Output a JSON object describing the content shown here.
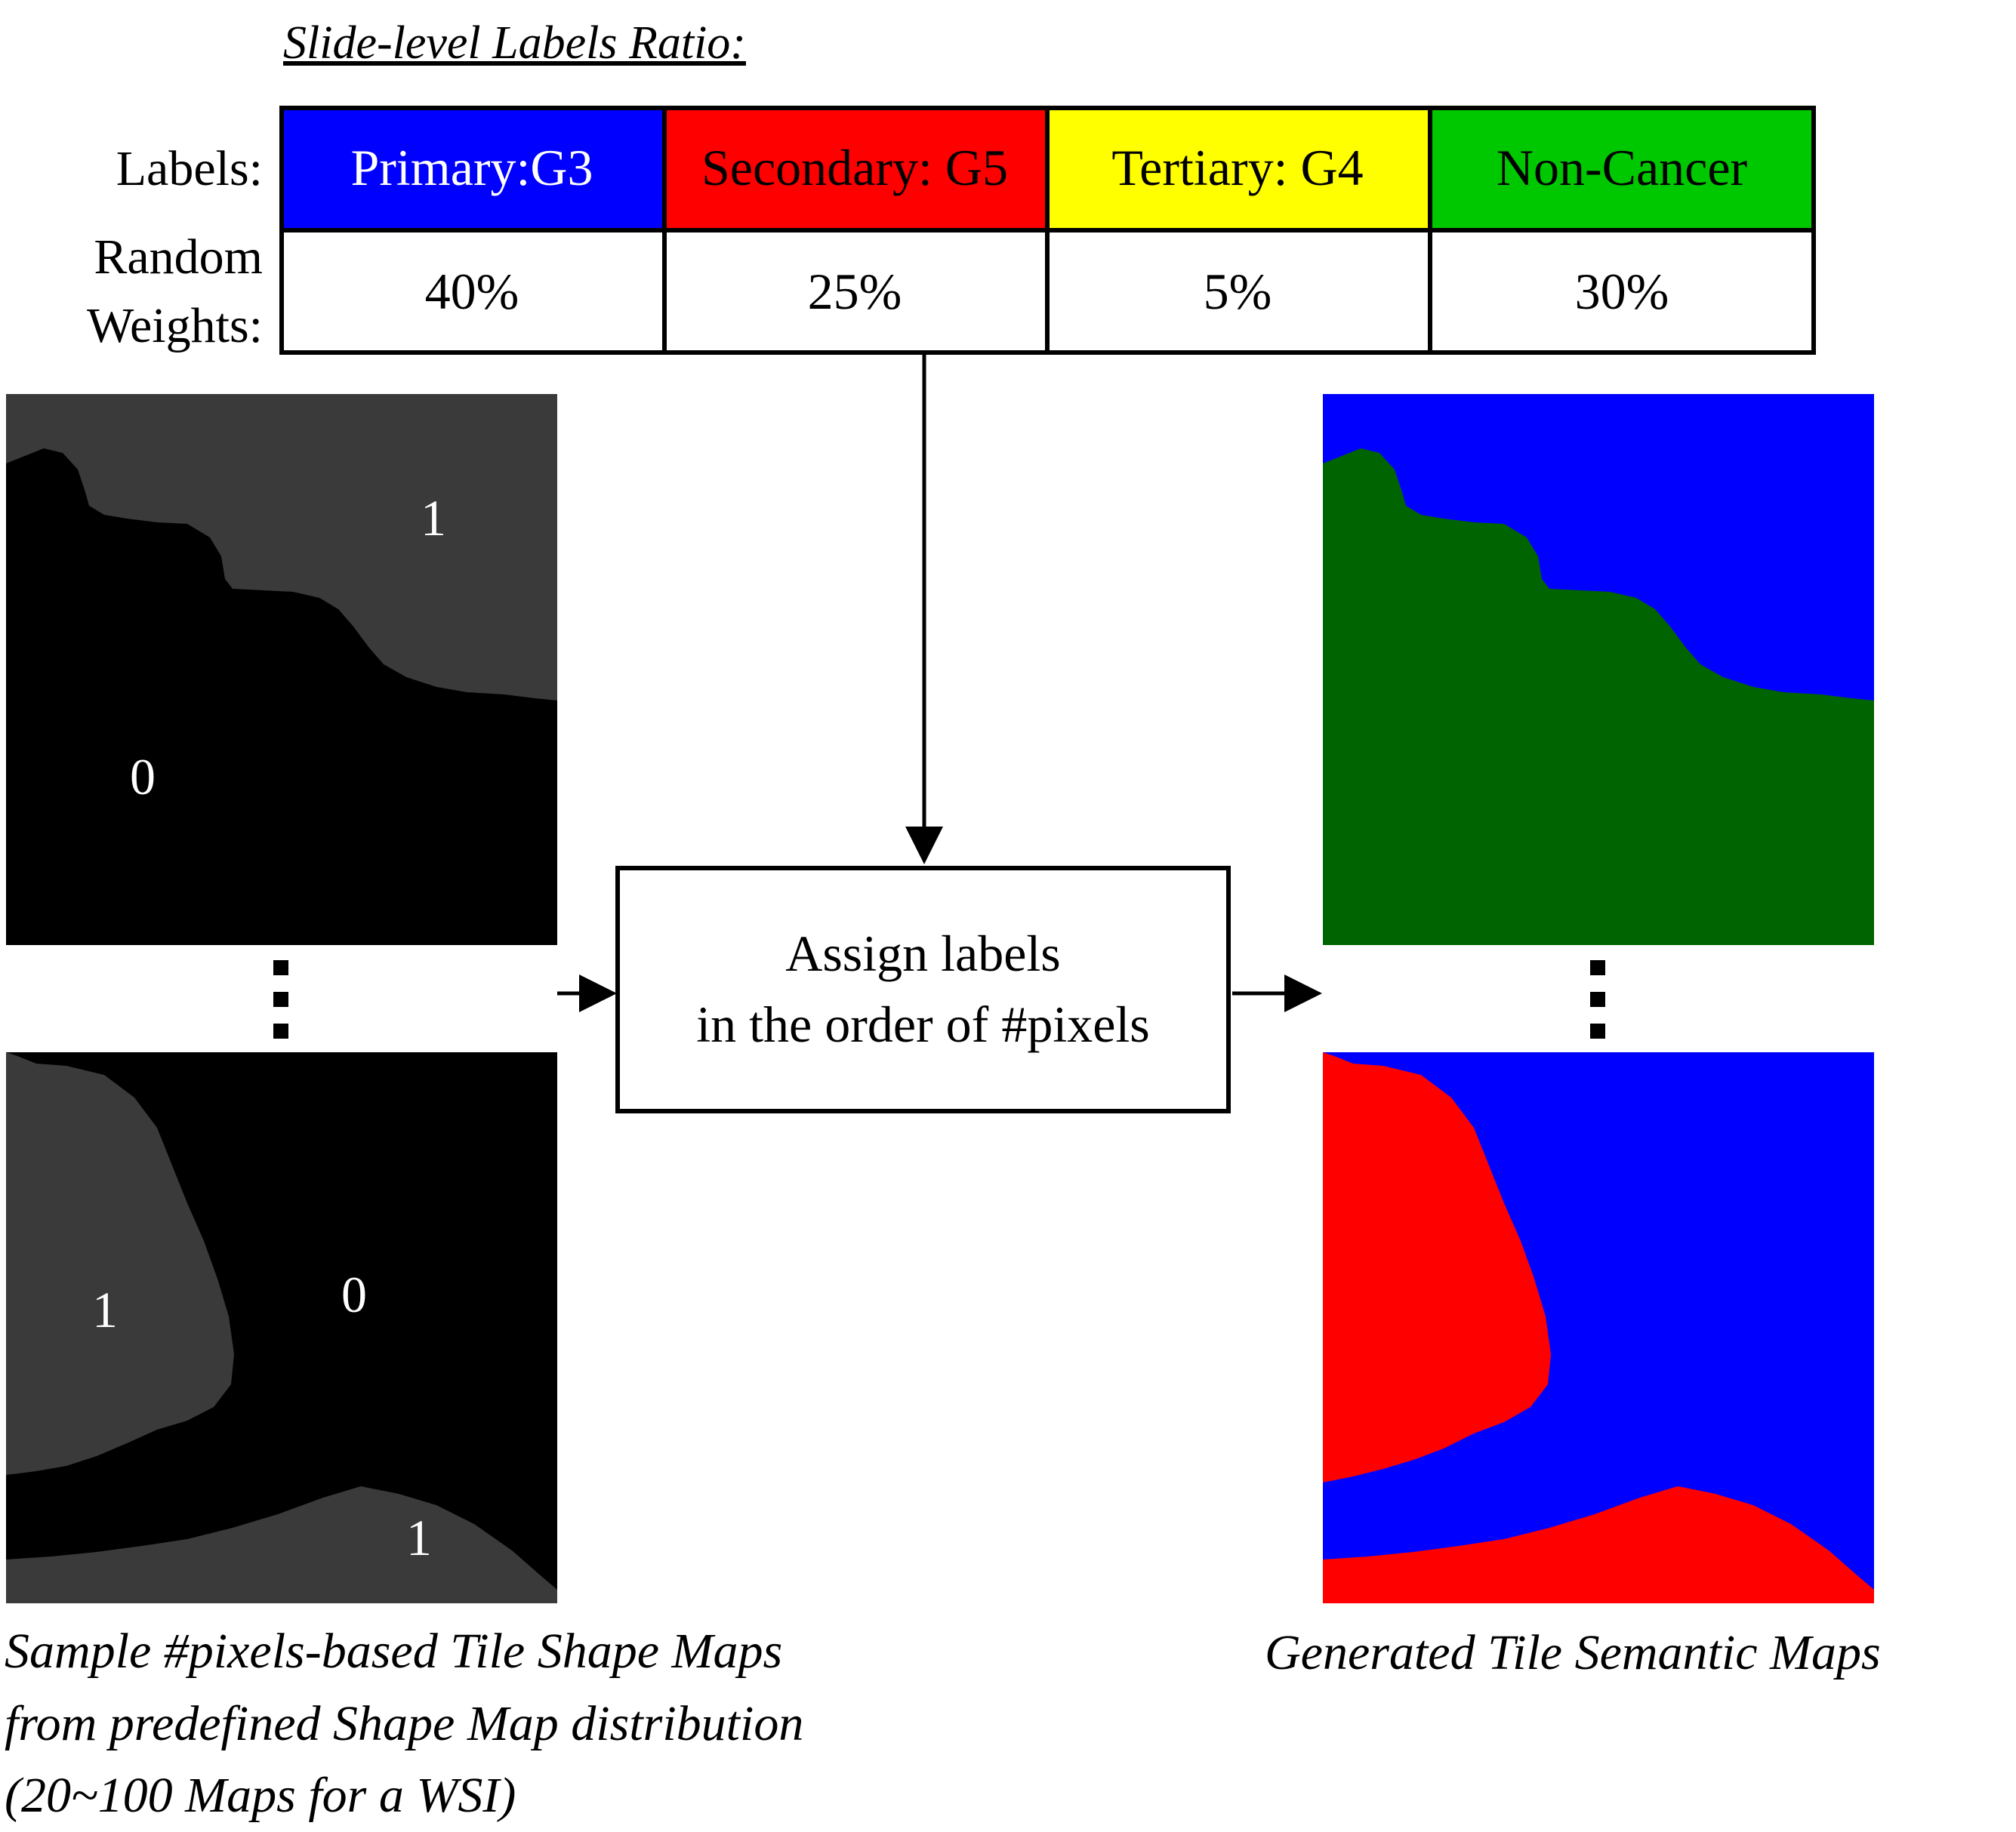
{
  "title": "Slide-level Labels Ratio:",
  "row_labels": {
    "labels": "Labels:",
    "weights_line1": "Random",
    "weights_line2": "Weights:"
  },
  "labels": [
    {
      "text": "Primary:G3",
      "color": "#0000ff",
      "text_color": "#ffffff",
      "weight": "40%"
    },
    {
      "text": "Secondary: G5",
      "color": "#ff0000",
      "text_color": "#000000",
      "weight": "25%"
    },
    {
      "text": "Tertiary: G4",
      "color": "#ffff00",
      "text_color": "#000000",
      "weight": "5%"
    },
    {
      "text": "Non-Cancer",
      "color": "#00c800",
      "text_color": "#000000",
      "weight": "30%"
    }
  ],
  "process_box": {
    "line1": "Assign labels",
    "line2": "in the order of #pixels"
  },
  "shape_maps": {
    "top": {
      "region_a": "1",
      "region_b": "0"
    },
    "bottom": {
      "region_a": "1",
      "region_b": "0",
      "region_c": "1"
    },
    "colors": {
      "background": "#000000",
      "region": "#3a3a3a"
    }
  },
  "semantic_colors": {
    "blue": "#0000ff",
    "dark_green": "#006400",
    "red": "#ff0000"
  },
  "captions": {
    "left_line1": "Sample #pixels-based Tile Shape Maps",
    "left_line2": "from predefined Shape Map distribution",
    "left_line3": "(20~100 Maps for a WSI)",
    "right": "Generated Tile Semantic Maps"
  }
}
